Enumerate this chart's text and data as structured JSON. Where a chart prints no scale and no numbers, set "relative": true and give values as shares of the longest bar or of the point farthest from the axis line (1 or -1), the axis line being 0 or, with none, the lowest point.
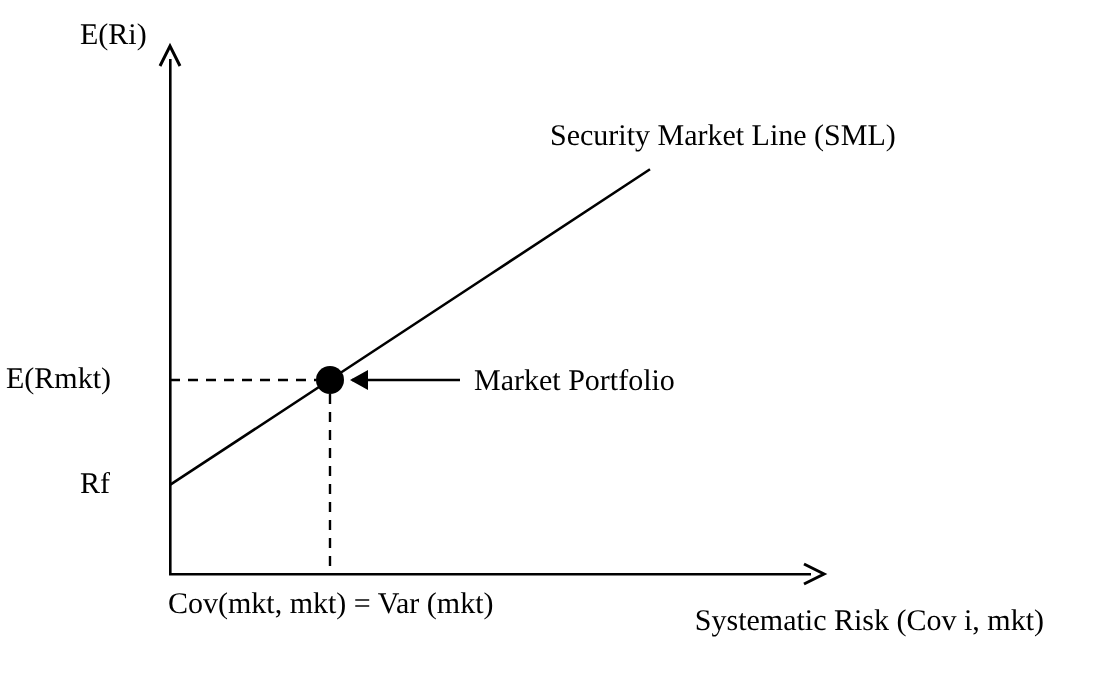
{
  "chart_data": {
    "type": "line",
    "xlabel": "Systematic Risk (Cov i, mkt)",
    "ylabel": "E(Ri)",
    "relative": true,
    "categories": [
      null,
      null,
      null,
      null,
      null
    ],
    "series": [
      {
        "color": "#000000",
        "values": [
          0.22,
          0.48,
          0.74,
          1,
          null
        ],
        "marker": "none",
        "line_style": "solid"
      }
    ],
    "annotations": [
      "Security Market Line (SML)",
      "Market Portfolio",
      "E(Rmkt)",
      "Rf",
      "Cov(mkt, mkt) = Var (mkt)"
    ]
  }
}
